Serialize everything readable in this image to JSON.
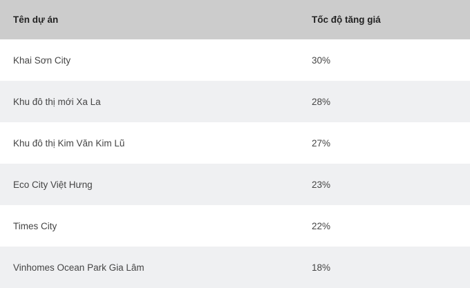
{
  "table": {
    "headers": [
      "Tên dự án",
      "Tốc độ tăng giá"
    ],
    "rows": [
      {
        "name": "Khai Sơn City",
        "rate": "30%"
      },
      {
        "name": "Khu đô thị mới Xa La",
        "rate": "28%"
      },
      {
        "name": "Khu đô thị Kim Văn Kim Lũ",
        "rate": "27%"
      },
      {
        "name": "Eco City Việt Hưng",
        "rate": "23%"
      },
      {
        "name": "Times City",
        "rate": "22%"
      },
      {
        "name": "Vinhomes Ocean Park Gia Lâm",
        "rate": "18%"
      }
    ]
  },
  "colors": {
    "header_bg": "#cccccc",
    "alt_row_bg": "#eff0f2"
  }
}
